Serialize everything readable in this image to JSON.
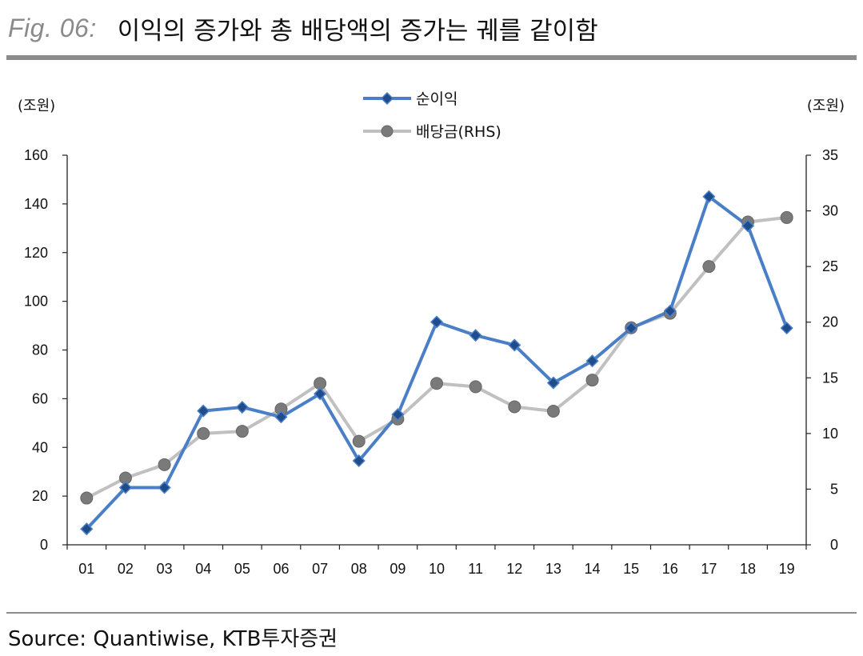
{
  "header": {
    "fig_label": "Fig. 06:",
    "title": "이익의 증가와 총 배당액의 증가는 궤를 같이함"
  },
  "source": "Source: Quantiwise, KTB투자증권",
  "colors": {
    "net_income": "#4a7fc8",
    "net_income_marker": "#1f4d8c",
    "dividend": "#c0c0c0",
    "dividend_marker": "#7a7a7a",
    "rule": "#8c8c8c"
  },
  "chart_data": {
    "type": "line",
    "categories": [
      "01",
      "02",
      "03",
      "04",
      "05",
      "06",
      "07",
      "08",
      "09",
      "10",
      "11",
      "12",
      "13",
      "14",
      "15",
      "16",
      "17",
      "18",
      "19"
    ],
    "left_unit": "(조원)",
    "right_unit": "(조원)",
    "y_left": {
      "min": 0,
      "max": 160,
      "ticks": [
        0,
        20,
        40,
        60,
        80,
        100,
        120,
        140,
        160
      ]
    },
    "y_right": {
      "min": 0,
      "max": 35,
      "ticks": [
        0,
        5,
        10,
        15,
        20,
        25,
        30,
        35
      ]
    },
    "grid": false,
    "legend_position": "top-center",
    "series": [
      {
        "name": "순이익",
        "axis": "left",
        "marker": "diamond",
        "values": [
          6.5,
          23.5,
          23.5,
          55,
          56.5,
          52.5,
          62,
          34.5,
          53.5,
          91.5,
          86,
          82,
          66.5,
          75.5,
          89,
          96,
          143,
          131,
          89
        ]
      },
      {
        "name": "배당금(RHS)",
        "axis": "right",
        "marker": "circle",
        "values": [
          4.2,
          6.0,
          7.2,
          10.0,
          10.2,
          12.2,
          14.5,
          9.3,
          11.3,
          14.5,
          14.2,
          12.4,
          12.0,
          14.8,
          19.5,
          20.8,
          25.0,
          29.0,
          29.4
        ]
      }
    ]
  }
}
